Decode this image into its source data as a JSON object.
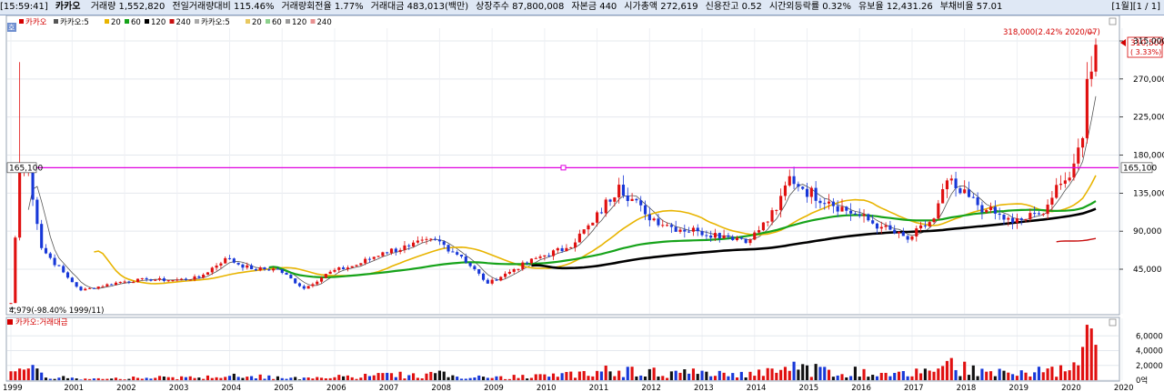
{
  "header": {
    "time": "[15:59:41]",
    "stock_name": "카카오",
    "fields": [
      "거래량 1,552,820",
      "전일거래량대비 115.46%",
      "거래량회전율 1.77%",
      "거래대금 483,013(백만)",
      "상장주수 87,800,008",
      "자본금 440",
      "시가총액 272,619",
      "신용잔고 0.52",
      "시간외등락률 0.32%",
      "유보율 12,431.26",
      "부채비율 57.01"
    ],
    "right_info": "[1월][1 / 1]"
  },
  "price_pane": {
    "corner_badge": "호",
    "legend": [
      {
        "label": "카카오",
        "color": "#d40000"
      },
      {
        "label": "카카오:5",
        "color": "#555555"
      },
      {
        "label": "20",
        "color": "#e8b400"
      },
      {
        "label": "60",
        "color": "#16a31a"
      },
      {
        "label": "120",
        "color": "#000000"
      },
      {
        "label": "240",
        "color": "#c81010"
      },
      {
        "label": "카카오:5",
        "color": "#aaaaaa"
      },
      {
        "label": "20",
        "color": "#e8c860"
      },
      {
        "label": "60",
        "color": "#8cd08c"
      },
      {
        "label": "120",
        "color": "#999999"
      },
      {
        "label": "240",
        "color": "#e89090"
      }
    ],
    "hline_label": "165,100",
    "hline_value": 165100,
    "max_annotation": "318,000(2.42% 2020/07)",
    "min_annotation": "4,979(-98.40% 1999/11)",
    "last_price_label": "310,500",
    "last_change_label": "( 3.33%)",
    "y_ticks": [
      "315,000",
      "270,000",
      "225,000",
      "180,000",
      "135,000",
      "90,000",
      "45,000"
    ]
  },
  "volume_pane": {
    "legend": "카카오:거래대금",
    "y_ticks": [
      "6,0000",
      "4,0000",
      "2,0000",
      "0억"
    ]
  },
  "x_axis": {
    "labels": [
      "1999",
      "2001",
      "2002",
      "2003",
      "2004",
      "2005",
      "2006",
      "2007",
      "2008",
      "2009",
      "2010",
      "2011",
      "2012",
      "2013",
      "2014",
      "2015",
      "2016",
      "2017",
      "2018",
      "2019",
      "2020",
      "2020"
    ]
  },
  "chart_data": {
    "type": "candlestick",
    "period": "monthly",
    "start": "1999-11",
    "price_ylim": [
      0,
      330000
    ],
    "volume_ylim": [
      0,
      80000
    ],
    "anchors": [
      [
        "1999-11",
        4979
      ],
      [
        "2000-01",
        160000
      ],
      [
        "2000-03",
        165100
      ],
      [
        "2000-06",
        70000
      ],
      [
        "2000-12",
        35000
      ],
      [
        "2001-03",
        20000
      ],
      [
        "2001-12",
        30000
      ],
      [
        "2002-06",
        33000
      ],
      [
        "2002-12",
        32000
      ],
      [
        "2003-06",
        35000
      ],
      [
        "2003-12",
        58000
      ],
      [
        "2004-06",
        45000
      ],
      [
        "2004-12",
        45000
      ],
      [
        "2005-06",
        22000
      ],
      [
        "2005-12",
        42000
      ],
      [
        "2006-06",
        50000
      ],
      [
        "2006-12",
        65000
      ],
      [
        "2007-06",
        72000
      ],
      [
        "2007-12",
        80000
      ],
      [
        "2008-06",
        60000
      ],
      [
        "2008-12",
        28000
      ],
      [
        "2009-06",
        45000
      ],
      [
        "2009-12",
        60000
      ],
      [
        "2010-06",
        70000
      ],
      [
        "2010-12",
        100000
      ],
      [
        "2011-06",
        145000
      ],
      [
        "2011-12",
        110000
      ],
      [
        "2012-06",
        95000
      ],
      [
        "2012-12",
        90000
      ],
      [
        "2013-06",
        85000
      ],
      [
        "2013-12",
        80000
      ],
      [
        "2014-06",
        115000
      ],
      [
        "2014-09",
        155000
      ],
      [
        "2014-12",
        140000
      ],
      [
        "2015-06",
        125000
      ],
      [
        "2015-12",
        110000
      ],
      [
        "2016-06",
        95000
      ],
      [
        "2016-12",
        80000
      ],
      [
        "2017-06",
        105000
      ],
      [
        "2017-09",
        150000
      ],
      [
        "2017-12",
        135000
      ],
      [
        "2018-06",
        115000
      ],
      [
        "2018-12",
        100000
      ],
      [
        "2019-06",
        110000
      ],
      [
        "2019-12",
        150000
      ],
      [
        "2020-02",
        170000
      ],
      [
        "2020-04",
        200000
      ],
      [
        "2020-05",
        270000
      ],
      [
        "2020-07",
        310500
      ]
    ],
    "volume_highlights": [
      [
        "2014-08",
        18000
      ],
      [
        "2014-10",
        25000
      ],
      [
        "2015-01",
        20000
      ],
      [
        "2015-03",
        22000
      ],
      [
        "2015-05",
        18000
      ],
      [
        "2016-02",
        15000
      ],
      [
        "2017-09",
        26000
      ],
      [
        "2017-10",
        30000
      ],
      [
        "2018-01",
        25000
      ],
      [
        "2019-12",
        12000
      ],
      [
        "2020-04",
        45000
      ],
      [
        "2020-05",
        75000
      ],
      [
        "2020-06",
        70000
      ]
    ]
  }
}
